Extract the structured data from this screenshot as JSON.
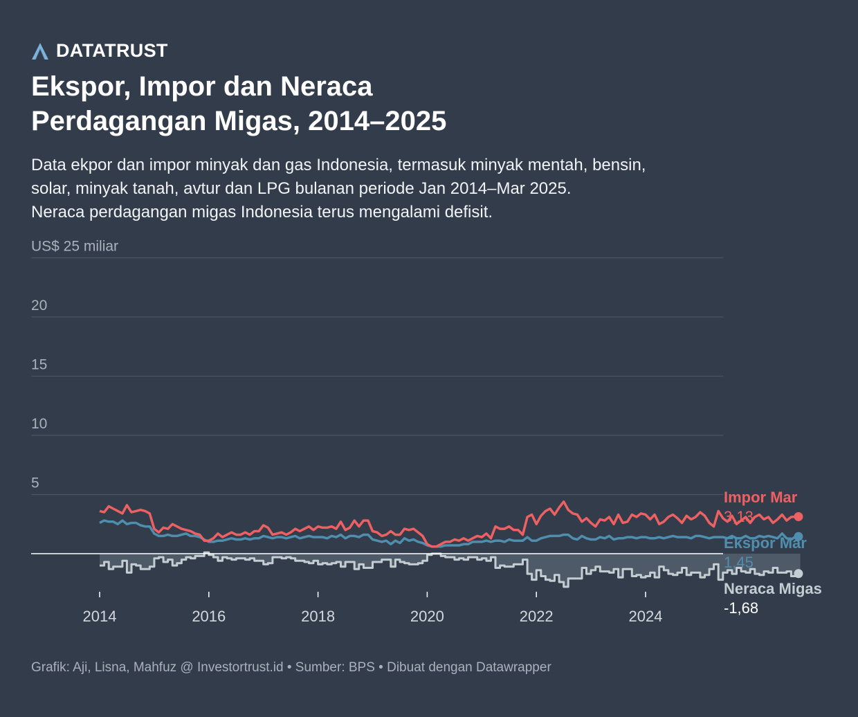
{
  "brand": {
    "name": "DATATRUST",
    "logo_icon": "datatrust-logo-icon",
    "logo_color": "#7bb3dd"
  },
  "title_lines": [
    "Ekspor, Impor dan Neraca",
    "Perdagangan Migas, 2014–2025"
  ],
  "subtitle_lines": [
    "Data ekpor dan impor minyak dan gas Indonesia, termasuk minyak mentah, bensin,",
    "solar, minyak tanah, avtur dan LPG bulanan periode Jan 2014–Mar 2025.",
    "Neraca perdagangan migas Indonesia terus mengalami defisit."
  ],
  "footer": "Grafik: Aji, Lisna, Mahfuz @ Investortrust.id • Sumber: BPS • Dibuat dengan Datawrapper",
  "chart_data": {
    "type": "line",
    "x_start": "2014-01",
    "x_end": "2025-03",
    "y_tick_labels": [
      "US$ 25 miliar",
      "20",
      "15",
      "10",
      "5"
    ],
    "y_ticks": [
      25,
      20,
      15,
      10,
      5,
      0
    ],
    "ylim": [
      -3.2,
      25
    ],
    "x_ticks": [
      "2014",
      "2016",
      "2018",
      "2020",
      "2022",
      "2024"
    ],
    "grid": true,
    "colors": {
      "impor": "#ed6163",
      "ekspor": "#4f8ead",
      "neraca": "#c4cdd1",
      "neraca_fill": "#4f5a68",
      "grid": "#4b5462",
      "zero": "#ffffff",
      "tick_text": "#aab1bc"
    },
    "end_labels": {
      "impor": {
        "name": "Impor Mar",
        "value": "3,13"
      },
      "ekspor": {
        "name": "Ekspor Mar",
        "value": "1,45"
      },
      "neraca": {
        "name": "Neraca Migas",
        "value": "-1,68"
      }
    },
    "series": {
      "impor": [
        3.6,
        3.5,
        4.0,
        3.8,
        3.6,
        3.4,
        4.1,
        3.5,
        3.6,
        3.7,
        3.6,
        3.4,
        2.1,
        1.8,
        2.2,
        2.1,
        2.5,
        2.3,
        2.1,
        2.0,
        1.9,
        1.7,
        1.6,
        1.1,
        1.1,
        1.3,
        1.7,
        1.4,
        1.6,
        1.8,
        1.6,
        1.6,
        1.8,
        1.6,
        1.9,
        1.9,
        2.4,
        2.2,
        1.6,
        1.7,
        1.8,
        1.6,
        1.8,
        2.1,
        1.9,
        2.1,
        2.3,
        2.0,
        2.3,
        2.2,
        2.2,
        2.3,
        2.1,
        2.7,
        2.0,
        2.2,
        2.8,
        2.3,
        2.8,
        2.8,
        1.9,
        1.8,
        1.5,
        1.6,
        1.9,
        1.6,
        1.6,
        2.1,
        2.0,
        2.1,
        1.8,
        1.5,
        0.8,
        0.6,
        0.6,
        0.8,
        1.0,
        1.0,
        1.2,
        1.1,
        1.3,
        1.1,
        1.3,
        1.5,
        1.4,
        1.7,
        1.3,
        2.3,
        2.1,
        2.1,
        2.3,
        2.0,
        2.0,
        1.6,
        3.1,
        3.3,
        2.5,
        3.2,
        3.6,
        3.8,
        3.3,
        3.9,
        4.4,
        3.7,
        3.4,
        3.3,
        2.7,
        3.0,
        2.6,
        2.3,
        2.9,
        2.8,
        3.1,
        2.5,
        3.3,
        2.6,
        2.7,
        3.3,
        3.1,
        3.4,
        3.3,
        2.9,
        3.3,
        2.5,
        2.7,
        3.1,
        3.3,
        3.0,
        2.6,
        3.2,
        2.9,
        3.1,
        3.5,
        3.2,
        2.6,
        2.3,
        3.6,
        3.0,
        2.7,
        3.2,
        2.5,
        2.8,
        3.1,
        2.6,
        3.1,
        3.3,
        2.9,
        3.1,
        2.6,
        2.9,
        3.3,
        2.8,
        3.1,
        3.13
      ],
      "ekspor": [
        2.6,
        2.8,
        2.7,
        2.7,
        2.5,
        2.8,
        2.5,
        2.6,
        2.6,
        2.4,
        2.3,
        2.3,
        1.7,
        1.5,
        1.5,
        1.6,
        1.5,
        1.5,
        1.6,
        1.7,
        1.5,
        1.5,
        1.4,
        1.2,
        1.0,
        1.0,
        1.1,
        1.1,
        1.2,
        1.3,
        1.2,
        1.2,
        1.3,
        1.2,
        1.3,
        1.3,
        1.5,
        1.4,
        1.3,
        1.4,
        1.4,
        1.3,
        1.4,
        1.5,
        1.3,
        1.4,
        1.5,
        1.4,
        1.4,
        1.4,
        1.3,
        1.5,
        1.4,
        1.6,
        1.3,
        1.5,
        1.5,
        1.4,
        1.6,
        1.6,
        1.2,
        1.1,
        1.0,
        1.1,
        0.8,
        1.1,
        0.9,
        1.3,
        1.1,
        1.2,
        1.0,
        0.9,
        0.7,
        0.6,
        0.6,
        0.6,
        0.7,
        0.7,
        0.7,
        0.7,
        0.8,
        0.8,
        1.0,
        1.0,
        1.0,
        1.1,
        1.0,
        1.1,
        1.1,
        1.0,
        1.2,
        1.1,
        1.1,
        1.1,
        1.4,
        1.1,
        1.1,
        1.3,
        1.4,
        1.5,
        1.5,
        1.5,
        1.6,
        1.6,
        1.3,
        1.2,
        1.5,
        1.3,
        1.2,
        1.2,
        1.4,
        1.3,
        1.5,
        1.2,
        1.3,
        1.3,
        1.4,
        1.4,
        1.3,
        1.4,
        1.4,
        1.3,
        1.3,
        1.4,
        1.3,
        1.4,
        1.5,
        1.4,
        1.4,
        1.4,
        1.3,
        1.5,
        1.5,
        1.4,
        1.3,
        1.4,
        1.4,
        1.4,
        1.3,
        1.5,
        1.3,
        1.3,
        1.5,
        1.3,
        1.3,
        1.5,
        1.4,
        1.5,
        1.4,
        1.3,
        1.7,
        1.3,
        1.2,
        1.45
      ],
      "neraca": [
        -1.0,
        -0.7,
        -1.3,
        -1.1,
        -1.1,
        -0.6,
        -1.6,
        -0.9,
        -1.0,
        -1.3,
        -1.3,
        -1.1,
        -0.4,
        -0.3,
        -0.7,
        -0.5,
        -1.0,
        -0.8,
        -0.5,
        -0.3,
        -0.4,
        -0.2,
        -0.2,
        0.1,
        -0.1,
        -0.3,
        -0.6,
        -0.3,
        -0.4,
        -0.5,
        -0.4,
        -0.4,
        -0.5,
        -0.4,
        -0.6,
        -0.6,
        -0.9,
        -0.8,
        -0.3,
        -0.3,
        -0.4,
        -0.3,
        -0.4,
        -0.6,
        -0.6,
        -0.7,
        -0.8,
        -0.6,
        -0.9,
        -0.8,
        -0.9,
        -0.8,
        -0.7,
        -1.1,
        -0.7,
        -0.7,
        -1.3,
        -0.9,
        -1.2,
        -1.2,
        -0.7,
        -0.7,
        -0.5,
        -0.5,
        -1.1,
        -0.5,
        -0.7,
        -0.8,
        -0.9,
        -0.9,
        -0.8,
        -0.6,
        -0.1,
        0.0,
        0.0,
        -0.2,
        -0.3,
        -0.3,
        -0.5,
        -0.4,
        -0.5,
        -0.3,
        -0.3,
        -0.5,
        -0.4,
        -0.6,
        -0.3,
        -1.2,
        -1.0,
        -1.1,
        -1.1,
        -0.9,
        -0.9,
        -0.5,
        -1.7,
        -2.2,
        -1.4,
        -1.9,
        -2.2,
        -2.3,
        -1.8,
        -2.4,
        -2.8,
        -2.1,
        -2.1,
        -2.1,
        -1.2,
        -1.7,
        -1.4,
        -1.1,
        -1.5,
        -1.5,
        -1.6,
        -1.3,
        -2.0,
        -1.3,
        -1.3,
        -1.9,
        -1.8,
        -2.0,
        -1.9,
        -1.6,
        -2.0,
        -1.1,
        -1.4,
        -1.7,
        -1.8,
        -1.6,
        -1.2,
        -1.8,
        -1.6,
        -1.6,
        -2.0,
        -1.8,
        -1.3,
        -0.9,
        -2.2,
        -1.6,
        -1.4,
        -1.7,
        -1.2,
        -1.5,
        -1.6,
        -1.3,
        -1.7,
        -1.8,
        -1.5,
        -1.6,
        -1.2,
        -1.6,
        -1.6,
        -1.5,
        -1.9,
        -1.68
      ]
    }
  }
}
